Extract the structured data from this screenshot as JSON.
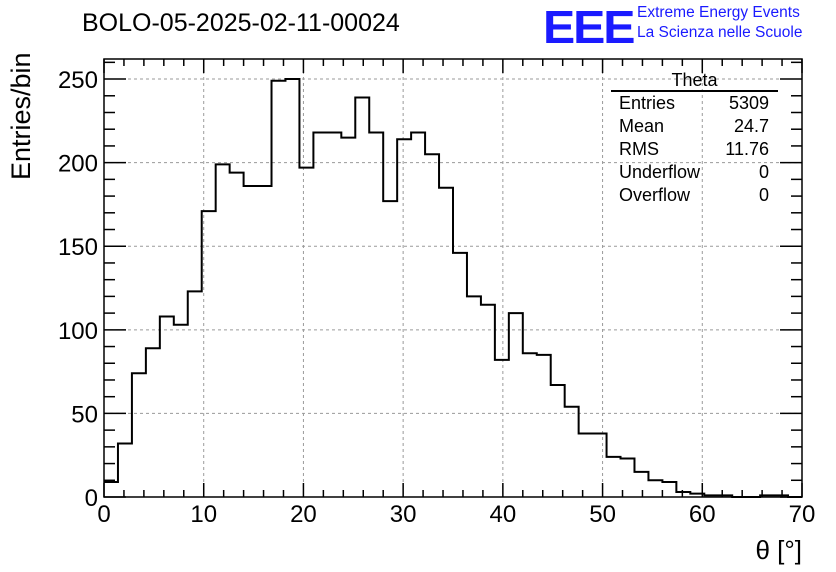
{
  "title": "BOLO-05-2025-02-11-00024",
  "logo": {
    "mark": "EEE",
    "line1": "Extreme Energy Events",
    "line2": "La Scienza nelle Scuole",
    "color": "#1a1aff"
  },
  "stats": {
    "title": "Theta",
    "rows": [
      {
        "label": "Entries",
        "value": "5309"
      },
      {
        "label": "Mean",
        "value": "24.7"
      },
      {
        "label": "RMS",
        "value": "11.76"
      },
      {
        "label": "Underflow",
        "value": "0"
      },
      {
        "label": "Overflow",
        "value": "0"
      }
    ]
  },
  "chart_data": {
    "type": "bar",
    "subtype": "step-histogram",
    "title": "BOLO-05-2025-02-11-00024",
    "xlabel": "θ [°]",
    "ylabel": "Entries/bin",
    "xlim": [
      0,
      70
    ],
    "ylim": [
      0,
      262
    ],
    "x_ticks": [
      0,
      10,
      20,
      30,
      40,
      50,
      60,
      70
    ],
    "y_ticks": [
      0,
      50,
      100,
      150,
      200,
      250
    ],
    "grid": true,
    "bin_width": 1.4,
    "bin_edges_start": 0,
    "values": [
      9,
      32,
      74,
      89,
      108,
      103,
      123,
      171,
      199,
      194,
      186,
      186,
      249,
      250,
      197,
      218,
      218,
      215,
      239,
      218,
      177,
      214,
      218,
      205,
      185,
      146,
      120,
      115,
      82,
      110,
      86,
      85,
      67,
      54,
      38,
      38,
      24,
      23,
      15,
      10,
      9,
      3,
      2,
      1,
      1,
      0,
      0,
      1,
      1,
      0
    ]
  }
}
